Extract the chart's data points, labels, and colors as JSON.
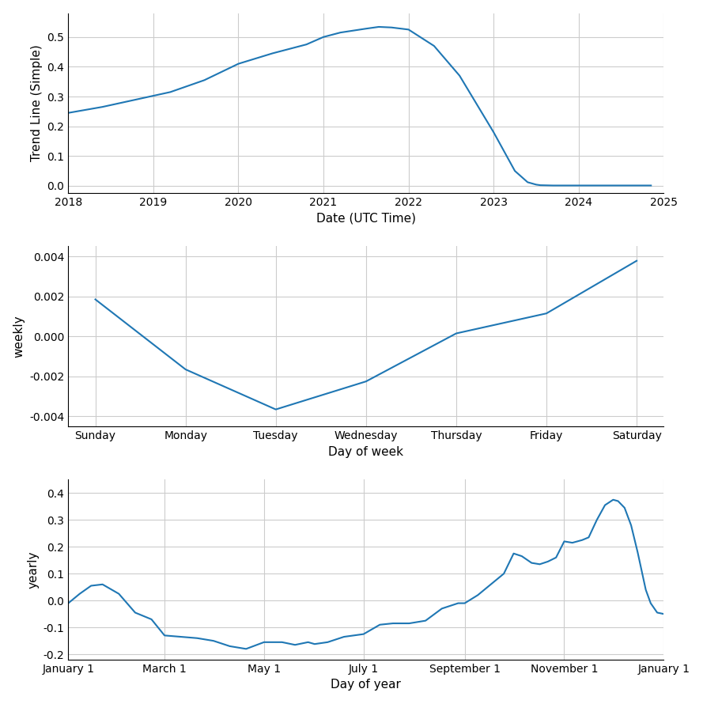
{
  "line_color": "#1f77b4",
  "line_width": 1.5,
  "bg_color": "#ffffff",
  "grid_color": "#cccccc",
  "subplot1": {
    "xlabel": "Date (UTC Time)",
    "ylabel": "Trend Line (Simple)",
    "xlim": [
      2018.0,
      2025.0
    ],
    "ylim": [
      -0.025,
      0.58
    ],
    "yticks": [
      0.0,
      0.1,
      0.2,
      0.3,
      0.4,
      0.5
    ],
    "xticks": [
      2018,
      2019,
      2020,
      2021,
      2022,
      2023,
      2024,
      2025
    ],
    "x": [
      2018.0,
      2018.4,
      2018.8,
      2019.2,
      2019.6,
      2020.0,
      2020.4,
      2020.8,
      2021.0,
      2021.2,
      2021.5,
      2021.65,
      2021.8,
      2022.0,
      2022.3,
      2022.6,
      2023.0,
      2023.25,
      2023.4,
      2023.5,
      2023.55,
      2023.7,
      2024.0,
      2024.3,
      2024.6,
      2024.85
    ],
    "y": [
      0.245,
      0.265,
      0.29,
      0.315,
      0.355,
      0.41,
      0.445,
      0.475,
      0.5,
      0.515,
      0.528,
      0.534,
      0.532,
      0.525,
      0.47,
      0.37,
      0.18,
      0.05,
      0.012,
      0.004,
      0.002,
      0.001,
      0.001,
      0.001,
      0.001,
      0.001
    ]
  },
  "subplot2": {
    "xlabel": "Day of week",
    "ylabel": "weekly",
    "xticks": [
      0,
      1,
      2,
      3,
      4,
      5,
      6
    ],
    "xticklabels": [
      "Sunday",
      "Monday",
      "Tuesday",
      "Wednesday",
      "Thursday",
      "Friday",
      "Saturday"
    ],
    "ylim": [
      -0.0045,
      0.0045
    ],
    "yticks": [
      -0.004,
      -0.002,
      0.0,
      0.002,
      0.004
    ],
    "x": [
      0,
      1,
      2,
      3,
      4,
      5,
      6
    ],
    "y": [
      0.00185,
      -0.00165,
      -0.00365,
      -0.00225,
      0.00015,
      0.00115,
      0.00378
    ]
  },
  "subplot3": {
    "xlabel": "Day of year",
    "ylabel": "yearly",
    "xtick_show": [
      1,
      60,
      121,
      182,
      244,
      305,
      366
    ],
    "xtick_labels_show": [
      "January 1",
      "March 1",
      "May 1",
      "July 1",
      "September 1",
      "November 1",
      "January 1"
    ],
    "ylim": [
      -0.22,
      0.45
    ],
    "yticks": [
      -0.2,
      -0.1,
      0.0,
      0.1,
      0.2,
      0.3,
      0.4
    ],
    "x": [
      1,
      8,
      15,
      22,
      32,
      42,
      52,
      60,
      70,
      80,
      90,
      100,
      110,
      121,
      132,
      140,
      148,
      152,
      160,
      170,
      182,
      192,
      200,
      210,
      220,
      230,
      240,
      244,
      252,
      260,
      268,
      274,
      279,
      285,
      290,
      295,
      300,
      305,
      310,
      316,
      320,
      325,
      330,
      335,
      338,
      342,
      346,
      350,
      355,
      358,
      362,
      366
    ],
    "y": [
      -0.01,
      0.025,
      0.055,
      0.06,
      0.025,
      -0.045,
      -0.07,
      -0.13,
      -0.135,
      -0.14,
      -0.15,
      -0.17,
      -0.18,
      -0.155,
      -0.155,
      -0.165,
      -0.155,
      -0.162,
      -0.155,
      -0.135,
      -0.125,
      -0.09,
      -0.085,
      -0.085,
      -0.075,
      -0.03,
      -0.01,
      -0.01,
      0.02,
      0.06,
      0.1,
      0.175,
      0.165,
      0.14,
      0.135,
      0.145,
      0.16,
      0.22,
      0.215,
      0.225,
      0.235,
      0.3,
      0.355,
      0.375,
      0.37,
      0.345,
      0.28,
      0.18,
      0.04,
      -0.01,
      -0.045,
      -0.05
    ]
  }
}
